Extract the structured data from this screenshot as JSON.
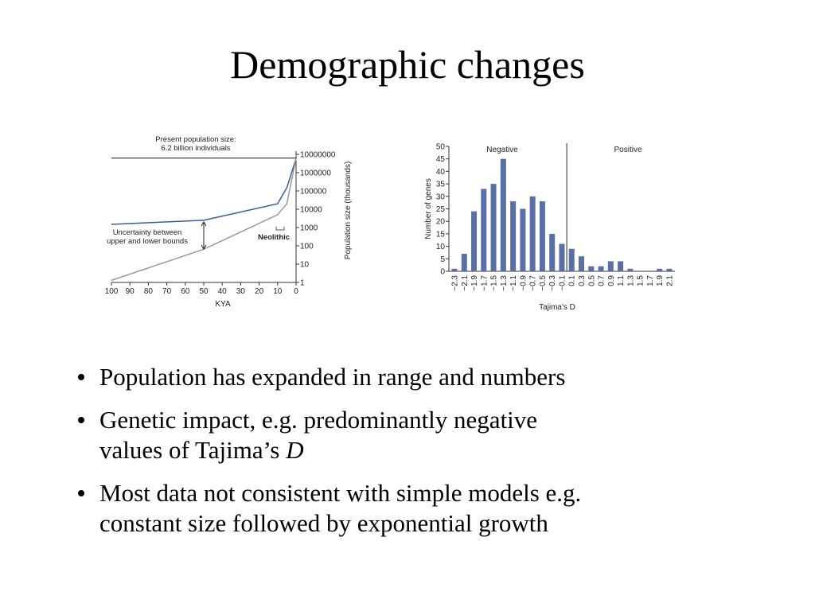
{
  "title": "Demographic changes",
  "bullets": [
    {
      "lines": [
        "Population has expanded in range and numbers"
      ]
    },
    {
      "lines": [
        "Genetic impact, e.g. predominantly negative",
        "values of Tajima’s"
      ],
      "emphasis": "D"
    },
    {
      "lines": [
        "Most data not consistent with simple models e.g.",
        "constant size followed by exponential growth"
      ]
    }
  ],
  "chart_data": [
    {
      "type": "line",
      "xlabel": "KYA",
      "ylabel": "Population size (thousands)",
      "yscale": "log",
      "xlim": [
        100,
        0
      ],
      "xticks": [
        100,
        90,
        80,
        70,
        60,
        50,
        40,
        30,
        20,
        10,
        0
      ],
      "ylim": [
        1,
        10000000
      ],
      "yticks": [
        1,
        10,
        100,
        1000,
        10000,
        100000,
        1000000,
        10000000
      ],
      "hline": 6200000,
      "annotations": [
        {
          "text": [
            "Present population size:",
            "6.2 billion individuals"
          ]
        },
        {
          "text": [
            "Uncertainty between",
            "upper and lower bounds"
          ]
        },
        {
          "text": [
            "Neolithic"
          ]
        }
      ],
      "x": [
        100,
        50,
        10,
        5,
        0
      ],
      "series": [
        {
          "color": "#3b5b9b",
          "values": [
            1500,
            2500,
            20000,
            150000,
            6000000
          ]
        },
        {
          "color": "#999999",
          "values": [
            1.3,
            65,
            5000,
            20000,
            6000000
          ]
        }
      ]
    },
    {
      "type": "bar",
      "xlabel": "Tajima's D",
      "ylabel": "Number of genes",
      "annotations": [
        {
          "text": [
            "Negative"
          ]
        },
        {
          "text": [
            "Positive"
          ]
        }
      ],
      "categories": [
        "−2.3",
        "−2.1",
        "−1.9",
        "−1.7",
        "−1.5",
        "−1.3",
        "−1.1",
        "−0.9",
        "−0.7",
        "−0.5",
        "−0.3",
        "−0.1",
        "0.1",
        "0.3",
        "0.5",
        "0.7",
        "0.9",
        "1.1",
        "1.3",
        "1.5",
        "1.7",
        "1.9",
        "2.1"
      ],
      "values": [
        1,
        7,
        24,
        33,
        35,
        45,
        28,
        25,
        30,
        28,
        15,
        11,
        9,
        6,
        2,
        2,
        4,
        4,
        1,
        0,
        0,
        1,
        1
      ],
      "color": "#5a6fa8",
      "ylim": [
        0,
        50
      ],
      "yticks": [
        0,
        5,
        10,
        15,
        20,
        25,
        30,
        35,
        40,
        45,
        50
      ]
    }
  ]
}
